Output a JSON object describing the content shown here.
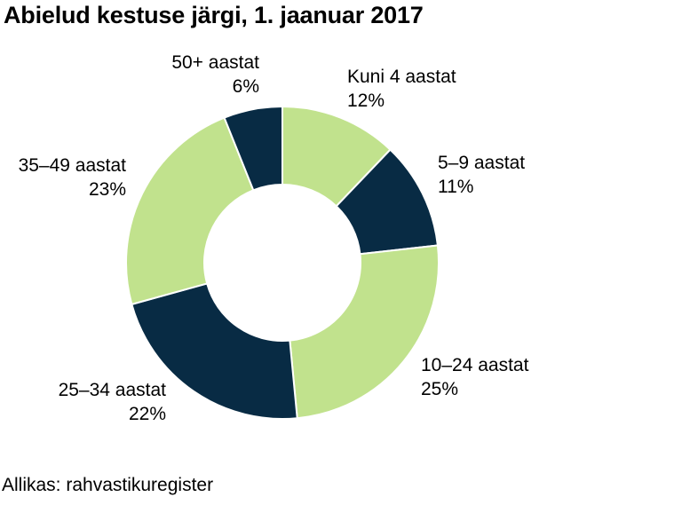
{
  "chart_data": {
    "type": "pie",
    "donut": true,
    "title": "Abielud kestuse järgi, 1. jaanuar 2017",
    "source": "Allikas: rahvastikuregister",
    "slices": [
      {
        "name": "Kuni 4 aastat",
        "value": 12,
        "label": "12%",
        "color": "#c1e28d"
      },
      {
        "name": "5–9 aastat",
        "value": 11,
        "label": "11%",
        "color": "#082b44"
      },
      {
        "name": "10–24 aastat",
        "value": 25,
        "label": "25%",
        "color": "#c1e28d"
      },
      {
        "name": "25–34 aastat",
        "value": 22,
        "label": "22%",
        "color": "#082b44"
      },
      {
        "name": "35–49 aastat",
        "value": 23,
        "label": "23%",
        "color": "#c1e28d"
      },
      {
        "name": "50+ aastat",
        "value": 6,
        "label": "6%",
        "color": "#082b44"
      }
    ]
  }
}
